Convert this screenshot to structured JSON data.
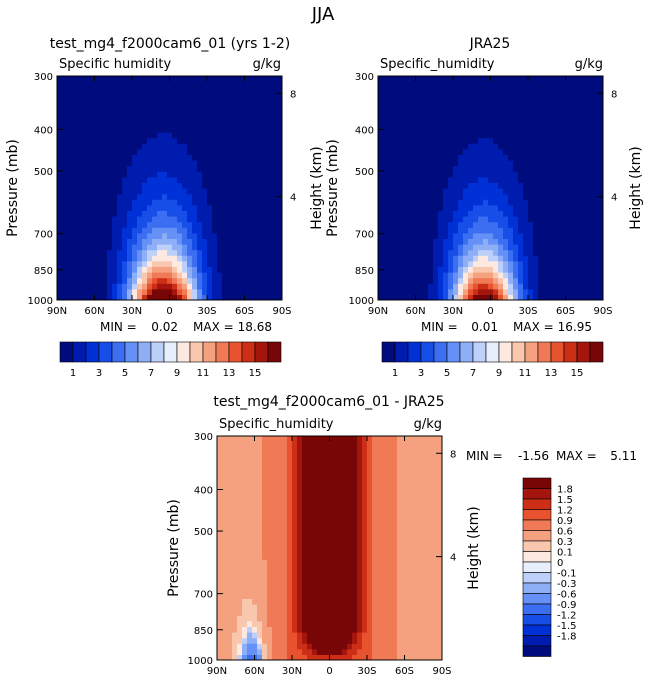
{
  "figure": {
    "title": "JJA"
  },
  "colors": {
    "abs_levels": [
      "#000c7d",
      "#001caf",
      "#0031d6",
      "#174ee8",
      "#3c6ef2",
      "#6590f5",
      "#8eaef6",
      "#bcd0f9",
      "#e7eefc",
      "#fde9df",
      "#f9c7ad",
      "#f5a07f",
      "#f07a55",
      "#e8522f",
      "#cc2f16",
      "#a3150d",
      "#780606"
    ],
    "diff_levels": [
      "#000c7d",
      "#001caf",
      "#0031d6",
      "#174ee8",
      "#3c6ef2",
      "#6590f5",
      "#8eaef6",
      "#bcd0f9",
      "#e7eefc",
      "#fde9df",
      "#f9c7ad",
      "#f5a07f",
      "#f07a55",
      "#e8522f",
      "#cc2f16",
      "#a3150d",
      "#780606"
    ]
  },
  "chart_data": [
    {
      "type": "heatmap",
      "title": "test_mg4_f2000cam6_01 (yrs 1-2)",
      "variable": "Specific humidity",
      "units": "g/kg",
      "xlabel": "",
      "ylabel": "Pressure (mb)",
      "y2label": "Height (km)",
      "x_ticks": [
        "90N",
        "60N",
        "30N",
        "0",
        "30S",
        "60S",
        "90S"
      ],
      "y_ticks": [
        "300",
        "400",
        "500",
        "700",
        "850",
        "1000"
      ],
      "y2_ticks": [
        "8",
        "4"
      ],
      "min_label": "MIN =",
      "min": "0.02",
      "max_label": "MAX =",
      "max": "18.68",
      "colorbar_ticks": [
        "1",
        "3",
        "5",
        "7",
        "9",
        "11",
        "13",
        "15"
      ],
      "contour_levels": [
        1,
        2,
        3,
        4,
        5,
        6,
        7,
        8,
        9,
        10,
        11,
        12,
        13,
        14,
        15
      ],
      "ylim": [
        1000,
        300
      ],
      "xlim": [
        "90N",
        "90S"
      ],
      "peak": {
        "lat": 5,
        "value": 18.68,
        "width": 27,
        "height": 11
      }
    },
    {
      "type": "heatmap",
      "title": "JRA25",
      "variable": "Specific_humidity",
      "units": "g/kg",
      "xlabel": "",
      "ylabel": "Pressure (mb)",
      "y2label": "Height (km)",
      "x_ticks": [
        "90N",
        "60N",
        "30N",
        "0",
        "30S",
        "60S",
        "90S"
      ],
      "y_ticks": [
        "300",
        "400",
        "500",
        "700",
        "850",
        "1000"
      ],
      "y2_ticks": [
        "8",
        "4"
      ],
      "min_label": "MIN =",
      "min": "0.01",
      "max_label": "MAX =",
      "max": "16.95",
      "colorbar_ticks": [
        "1",
        "3",
        "5",
        "7",
        "9",
        "11",
        "13",
        "15"
      ],
      "contour_levels": [
        1,
        2,
        3,
        4,
        5,
        6,
        7,
        8,
        9,
        10,
        11,
        12,
        13,
        14,
        15
      ],
      "ylim": [
        1000,
        300
      ],
      "xlim": [
        "90N",
        "90S"
      ],
      "peak": {
        "lat": 5,
        "value": 16.95,
        "width": 26,
        "height": 9
      }
    },
    {
      "type": "heatmap",
      "title": "test_mg4_f2000cam6_01 - JRA25",
      "variable": "Specific_humidity",
      "units": "g/kg",
      "xlabel": "",
      "ylabel": "Pressure (mb)",
      "y2label": "Height (km)",
      "x_ticks": [
        "90N",
        "60N",
        "30N",
        "0",
        "30S",
        "60S",
        "90S"
      ],
      "y_ticks": [
        "300",
        "400",
        "500",
        "700",
        "850",
        "1000"
      ],
      "y2_ticks": [
        "8",
        "4"
      ],
      "min_label": "MIN =",
      "min": "-1.56",
      "max_label": "MAX =",
      "max": "5.11",
      "colorbar_ticks": [
        "1.8",
        "1.5",
        "1.2",
        "0.9",
        "0.6",
        "0.3",
        "0.1",
        "0",
        "-0.1",
        "-0.3",
        "-0.6",
        "-0.9",
        "-1.2",
        "-1.5",
        "-1.8"
      ],
      "contour_levels": [
        -1.8,
        -1.5,
        -1.2,
        -0.9,
        -0.6,
        -0.3,
        -0.1,
        0,
        0.1,
        0.3,
        0.6,
        0.9,
        1.2,
        1.5,
        1.8
      ],
      "ylim": [
        1000,
        300
      ],
      "xlim": [
        "90N",
        "90S"
      ]
    }
  ]
}
